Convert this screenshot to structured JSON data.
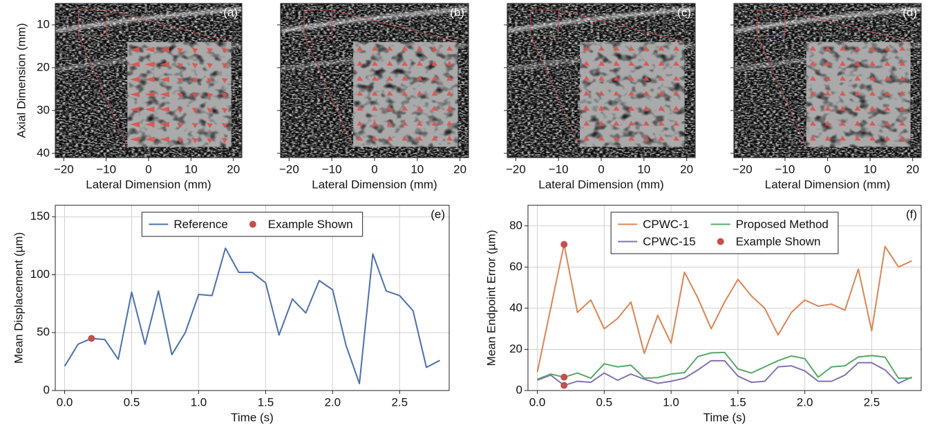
{
  "chart_data": [
    {
      "type": "image",
      "panel_label": "(a)",
      "xlabel": "Lateral Dimension (mm)",
      "ylabel": "Axial Dimension (mm)",
      "xlim": [
        -22,
        22
      ],
      "ylim": [
        41,
        5
      ],
      "xticks": [
        {
          "value": -20,
          "label": "−20"
        },
        {
          "value": -10,
          "label": "−10"
        },
        0,
        10,
        20
      ],
      "yticks": [
        10,
        20,
        30,
        40
      ],
      "show_ytick_labels": true
    },
    {
      "type": "image",
      "panel_label": "(b)",
      "xlabel": "Lateral Dimension (mm)",
      "xlim": [
        -22,
        22
      ],
      "ylim": [
        41,
        5
      ],
      "xticks": [
        {
          "value": -20,
          "label": "−20"
        },
        {
          "value": -10,
          "label": "−10"
        },
        0,
        10,
        20
      ],
      "yticks": [
        10,
        20,
        30,
        40
      ],
      "show_ytick_labels": false
    },
    {
      "type": "image",
      "panel_label": "(c)",
      "xlabel": "Lateral Dimension (mm)",
      "xlim": [
        -22,
        22
      ],
      "ylim": [
        41,
        5
      ],
      "xticks": [
        {
          "value": -20,
          "label": "−20"
        },
        {
          "value": -10,
          "label": "−10"
        },
        0,
        10,
        20
      ],
      "yticks": [
        10,
        20,
        30,
        40
      ],
      "show_ytick_labels": false
    },
    {
      "type": "image",
      "panel_label": "(d)",
      "xlabel": "Lateral Dimension (mm)",
      "xlim": [
        -22,
        22
      ],
      "ylim": [
        41,
        5
      ],
      "xticks": [
        {
          "value": -20,
          "label": "−20"
        },
        {
          "value": -10,
          "label": "−10"
        },
        0,
        10,
        20
      ],
      "yticks": [
        10,
        20,
        30,
        40
      ],
      "show_ytick_labels": false
    },
    {
      "type": "line",
      "panel_label": "(e)",
      "xlabel": "Time (s)",
      "ylabel": "Mean Displacement (µm)",
      "xlim": [
        -0.07,
        2.87
      ],
      "ylim": [
        0,
        160
      ],
      "xticks": [
        {
          "value": 0,
          "label": "0.0"
        },
        0.5,
        {
          "value": 1,
          "label": "1.0"
        },
        1.5,
        {
          "value": 2,
          "label": "2.0"
        },
        2.5
      ],
      "yticks": [
        0,
        50,
        100,
        150
      ],
      "show_ytick_labels": true,
      "grid": true,
      "legend": "upper center",
      "legend_columns": 2,
      "x": [
        0,
        0.1,
        0.2,
        0.3,
        0.4,
        0.5,
        0.6,
        0.7,
        0.8,
        0.9,
        1.0,
        1.1,
        1.2,
        1.3,
        1.4,
        1.5,
        1.6,
        1.7,
        1.8,
        1.9,
        2.0,
        2.1,
        2.2,
        2.3,
        2.4,
        2.5,
        2.6,
        2.7,
        2.8
      ],
      "series": [
        {
          "name": "Reference",
          "color": "#4a6fad",
          "values": [
            21,
            40,
            45,
            44,
            27,
            85,
            40,
            86,
            31,
            50,
            83,
            82,
            123,
            102,
            102,
            93,
            48,
            79,
            67,
            95,
            87,
            39,
            6,
            118,
            86,
            82,
            69,
            20,
            26
          ]
        },
        {
          "name": "Example Shown",
          "color": "#c44e52",
          "mode": "markers",
          "x": [
            0.2
          ],
          "values": [
            45
          ]
        }
      ]
    },
    {
      "type": "line",
      "panel_label": "(f)",
      "xlabel": "Time (s)",
      "ylabel": "Mean Endpoint Error (µm)",
      "xlim": [
        -0.07,
        2.87
      ],
      "ylim": [
        0,
        90
      ],
      "xticks": [
        {
          "value": 0,
          "label": "0.0"
        },
        0.5,
        {
          "value": 1,
          "label": "1.0"
        },
        1.5,
        {
          "value": 2,
          "label": "2.0"
        },
        2.5
      ],
      "yticks": [
        0,
        20,
        40,
        60,
        80
      ],
      "show_ytick_labels": true,
      "grid": true,
      "legend": "upper center",
      "legend_columns": 2,
      "x": [
        0,
        0.1,
        0.2,
        0.3,
        0.4,
        0.5,
        0.6,
        0.7,
        0.8,
        0.9,
        1.0,
        1.1,
        1.2,
        1.3,
        1.4,
        1.5,
        1.6,
        1.7,
        1.8,
        1.9,
        2.0,
        2.1,
        2.2,
        2.3,
        2.4,
        2.5,
        2.6,
        2.7,
        2.8
      ],
      "series": [
        {
          "name": "CPWC-1",
          "color": "#dd8452",
          "values": [
            9,
            40,
            71,
            38,
            44,
            30,
            35,
            43,
            18,
            36.5,
            23,
            57.5,
            45,
            30,
            43,
            54,
            46,
            40,
            27,
            38,
            44,
            41,
            42,
            39,
            59,
            29,
            70,
            60,
            63
          ]
        },
        {
          "name": "CPWC-15",
          "color": "#8172b3",
          "values": [
            5,
            7.5,
            2.5,
            4.5,
            4,
            8.5,
            5,
            8,
            5.5,
            3.5,
            4.5,
            6,
            10,
            14.5,
            14.5,
            7,
            4,
            4.5,
            11.5,
            12,
            9.5,
            4.5,
            4.5,
            7.5,
            13.5,
            13.5,
            10,
            3.5,
            6.5
          ]
        },
        {
          "name": "Proposed Method",
          "color": "#55a868",
          "values": [
            5.5,
            8,
            6.5,
            8.5,
            6,
            13,
            11.5,
            12.3,
            6,
            6.3,
            8,
            8.7,
            16.5,
            18.3,
            18.5,
            10.5,
            8.5,
            11.5,
            14.5,
            16.8,
            15.5,
            6.5,
            11.5,
            12,
            16.3,
            17,
            16.2,
            6,
            6
          ]
        },
        {
          "name": "Example Shown",
          "color": "#c44e52",
          "mode": "markers",
          "x": [
            0.2,
            0.2,
            0.2
          ],
          "values": [
            71,
            6.5,
            2.5
          ]
        }
      ]
    }
  ]
}
